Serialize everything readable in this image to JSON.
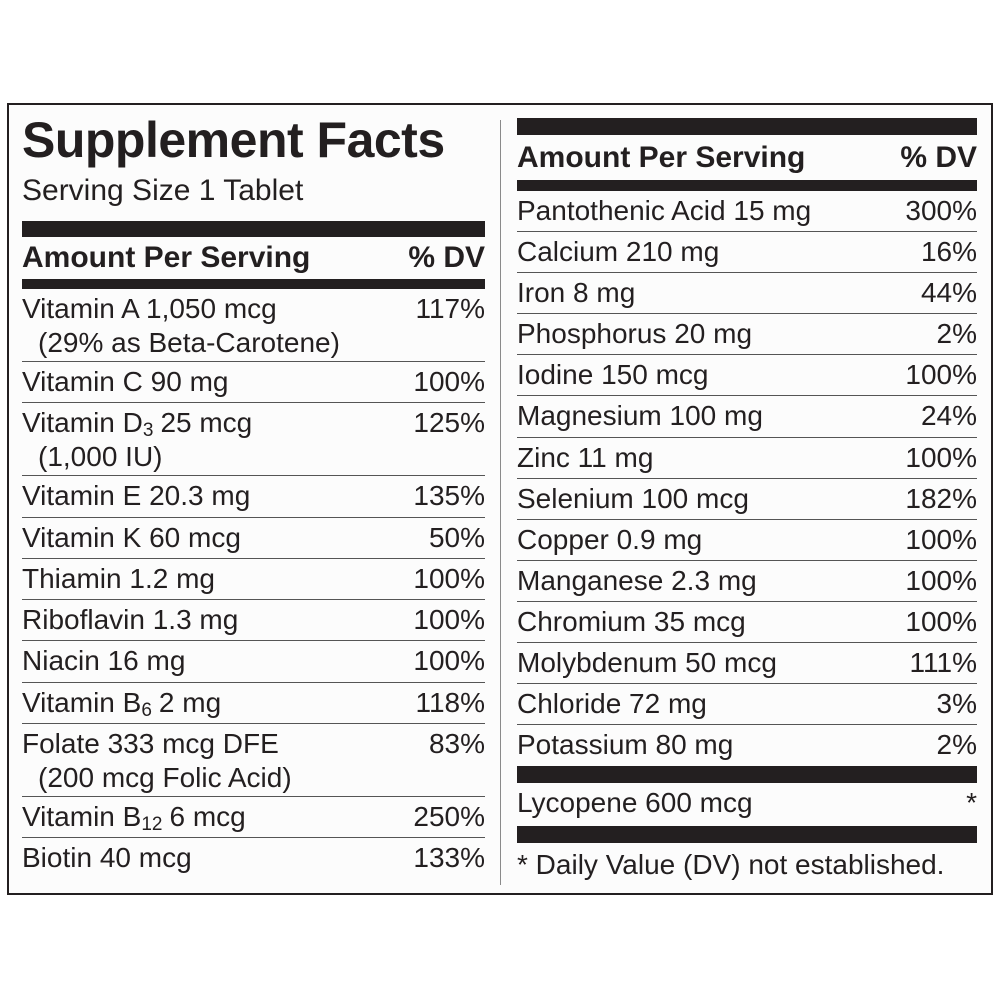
{
  "left": {
    "title": "Supplement Facts",
    "serving": "Serving Size 1 Tablet",
    "header": {
      "amount": "Amount Per Serving",
      "dv": "% DV"
    },
    "rows": [
      {
        "name": "Vitamin A 1,050 mcg",
        "note": "(29% as Beta-Carotene)",
        "dv": "117%"
      },
      {
        "name": "Vitamin C 90 mg",
        "dv": "100%"
      },
      {
        "name": "Vitamin D",
        "sub": "3",
        "rest": "25 mcg",
        "note": "(1,000 IU)",
        "dv": "125%"
      },
      {
        "name": "Vitamin E 20.3 mg",
        "dv": "135%"
      },
      {
        "name": "Vitamin K 60 mcg",
        "dv": "50%"
      },
      {
        "name": "Thiamin 1.2 mg",
        "dv": "100%"
      },
      {
        "name": "Riboflavin 1.3 mg",
        "dv": "100%"
      },
      {
        "name": "Niacin 16 mg",
        "dv": "100%"
      },
      {
        "name": "Vitamin B",
        "sub": "6",
        "rest": "2 mg",
        "dv": "118%"
      },
      {
        "name": "Folate 333 mcg DFE",
        "note": "(200 mcg Folic Acid)",
        "dv": "83%"
      },
      {
        "name": "Vitamin B",
        "sub": "12",
        "rest": "6 mcg",
        "dv": "250%"
      },
      {
        "name": "Biotin 40 mcg",
        "dv": "133%"
      }
    ]
  },
  "right": {
    "header": {
      "amount": "Amount Per Serving",
      "dv": "% DV"
    },
    "rows": [
      {
        "name": "Pantothenic Acid 15 mg",
        "dv": "300%"
      },
      {
        "name": "Calcium 210 mg",
        "dv": "16%"
      },
      {
        "name": "Iron 8 mg",
        "dv": "44%"
      },
      {
        "name": "Phosphorus 20 mg",
        "dv": "2%"
      },
      {
        "name": "Iodine 150 mcg",
        "dv": "100%"
      },
      {
        "name": "Magnesium 100 mg",
        "dv": "24%"
      },
      {
        "name": "Zinc 11 mg",
        "dv": "100%"
      },
      {
        "name": "Selenium 100 mcg",
        "dv": "182%"
      },
      {
        "name": "Copper 0.9 mg",
        "dv": "100%"
      },
      {
        "name": "Manganese 2.3 mg",
        "dv": "100%"
      },
      {
        "name": "Chromium 35 mcg",
        "dv": "100%"
      },
      {
        "name": "Molybdenum 50 mcg",
        "dv": "111%"
      },
      {
        "name": "Chloride 72 mg",
        "dv": "3%"
      },
      {
        "name": "Potassium 80 mg",
        "dv": "2%"
      }
    ],
    "other": {
      "name": "Lycopene 600 mcg",
      "dv": "*"
    },
    "footnote": "* Daily Value (DV) not established."
  }
}
